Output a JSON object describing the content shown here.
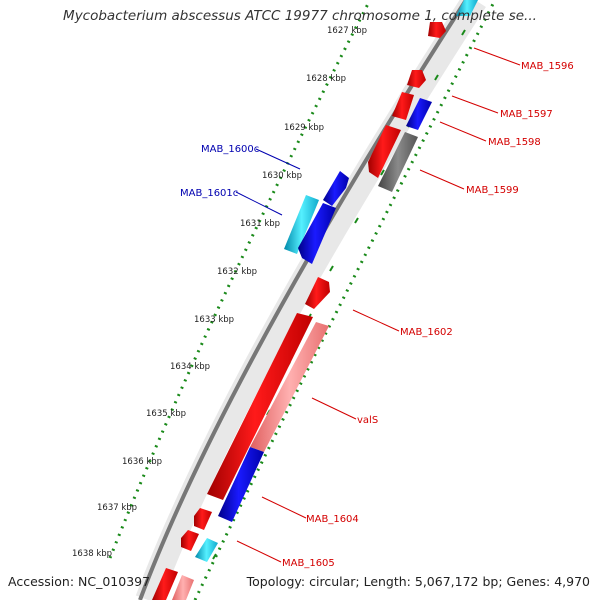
{
  "title": "Mycobacterium abscessus ATCC 19977 chromosome 1, complete se...",
  "footer": {
    "accession": "Accession: NC_010397",
    "summary": "Topology: circular; Length: 5,067,172 bp; Genes: 4,970"
  },
  "ticks": [
    "1627 kbp",
    "1628 kbp",
    "1629 kbp",
    "1630 kbp",
    "1631 kbp",
    "1632 kbp",
    "1633 kbp",
    "1634 kbp",
    "1635 kbp",
    "1636 kbp",
    "1637 kbp",
    "1638 kbp"
  ],
  "gene_labels": {
    "mab_1596": "MAB_1596",
    "mab_1597": "MAB_1597",
    "mab_1598": "MAB_1598",
    "mab_1599": "MAB_1599",
    "mab_1600c": "MAB_1600c",
    "mab_1601c": "MAB_1601c",
    "mab_1602": "MAB_1602",
    "vals": "valS",
    "mab_1604": "MAB_1604",
    "mab_1605": "MAB_1605"
  },
  "colors": {
    "forward_label": "#d40000",
    "reverse_label": "#0000b0",
    "forward_gene": "#ff0000",
    "reverse_gene": "#0000ee",
    "rna_light": "#33ddee",
    "pseudo_gray": "#6a6a6a",
    "pink": "#f08080",
    "dots": "#1a8a1a"
  }
}
